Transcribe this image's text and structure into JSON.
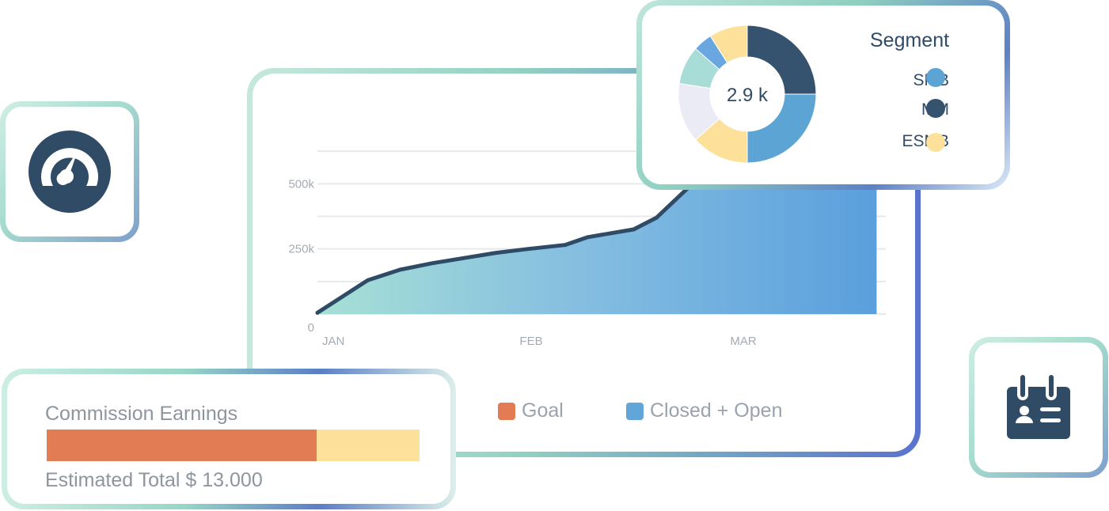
{
  "chart_data": [
    {
      "type": "area",
      "title": "",
      "xlabel": "",
      "ylabel": "",
      "y_ticks": [
        "0",
        "250k",
        "500k"
      ],
      "x_ticks": [
        "JAN",
        "FEB",
        "MAR"
      ],
      "ylim": [
        0,
        750000
      ],
      "grid": true,
      "legend_position": "bottom",
      "series": [
        {
          "name": "Closed + Open",
          "color": "#5b9fdb",
          "x": [
            0.0,
            0.11,
            0.18,
            0.25,
            0.32,
            0.39,
            0.46,
            0.54,
            0.59,
            0.69,
            0.74,
            0.83,
            0.93,
            0.98,
            1.07,
            1.14,
            1.22
          ],
          "y": [
            5000,
            130000,
            170000,
            195000,
            215000,
            235000,
            250000,
            265000,
            295000,
            325000,
            370000,
            520000,
            570000,
            620000,
            650000,
            720000,
            770000
          ]
        }
      ]
    },
    {
      "type": "pie",
      "title": "",
      "center_label": "2.9 k",
      "slices": [
        {
          "label": "MM",
          "value": 25,
          "color": "#35536f"
        },
        {
          "label": "SMB",
          "value": 25,
          "color": "#5ba4d4"
        },
        {
          "label": "ESMB",
          "value": 13.5,
          "color": "#fde19b"
        },
        {
          "label": "",
          "value": 14,
          "color": "#ebebf5"
        },
        {
          "label": "",
          "value": 9,
          "color": "#a7dcd7"
        },
        {
          "label": "",
          "value": 4.5,
          "color": "#6aa6e0"
        },
        {
          "label": "",
          "value": 9,
          "color": "#fde19b"
        }
      ]
    }
  ],
  "main_chart": {
    "legend": [
      {
        "label": "Goal",
        "color": "#e27c54"
      },
      {
        "label": "Closed + Open",
        "color": "#62a6d9"
      }
    ]
  },
  "segment": {
    "title": "Segment",
    "center_label": "2.9 k",
    "items": [
      {
        "label": "SMB",
        "color": "#5ba4d4"
      },
      {
        "label": "MM",
        "color": "#35536f"
      },
      {
        "label": "ESMB",
        "color": "#fde19b"
      }
    ]
  },
  "commission": {
    "title": "Commission Earnings",
    "progress": 0.725,
    "fill_color": "#e27c54",
    "track_color": "#fde19b",
    "total_text": "Estimated Total $ 13.000"
  },
  "icons": {
    "gauge": "gauge-icon",
    "calendar": "calendar-icon"
  }
}
